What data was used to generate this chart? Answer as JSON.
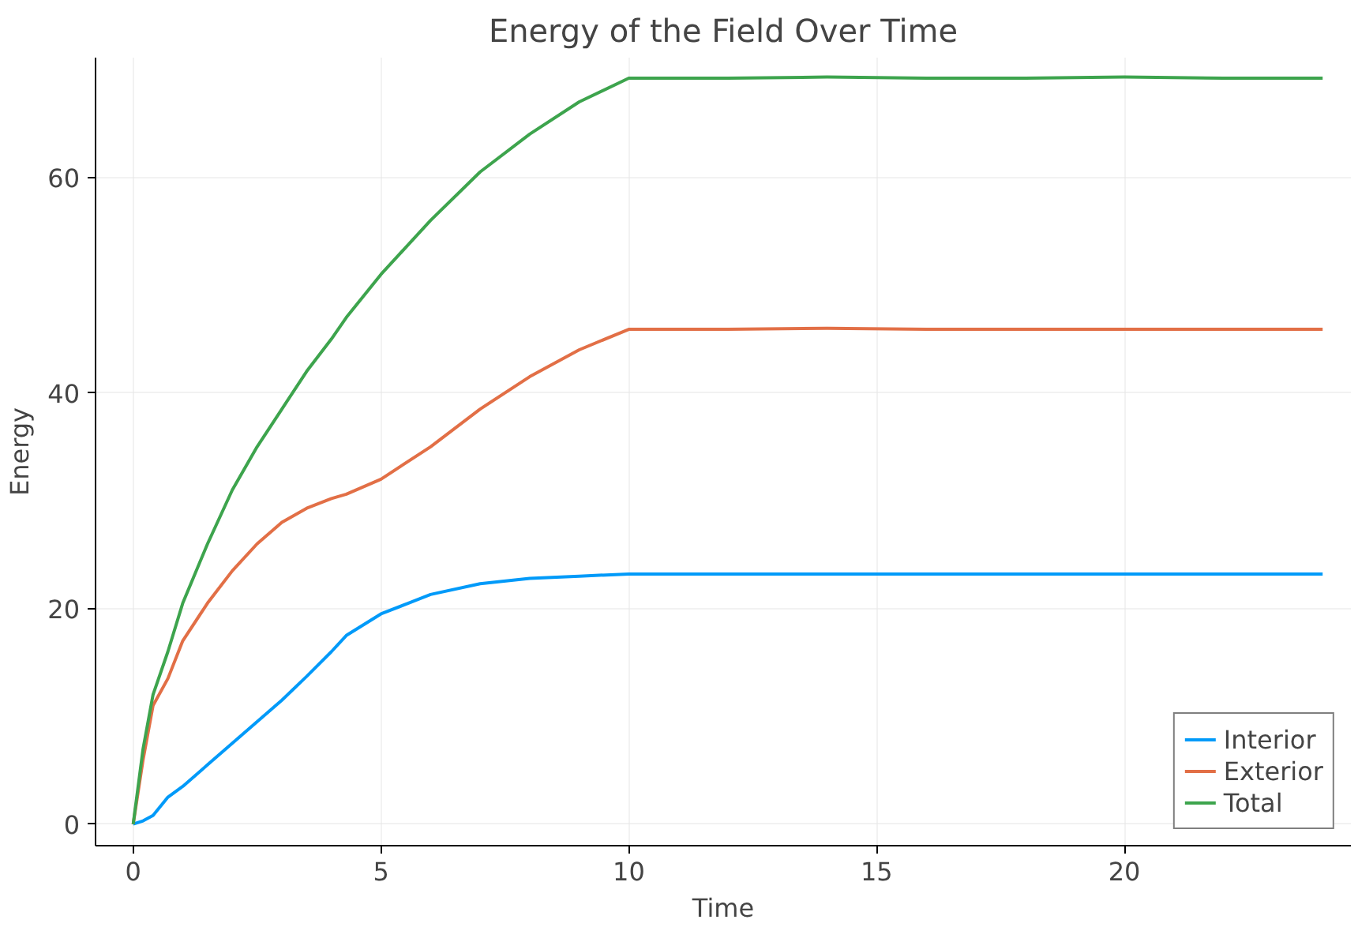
{
  "chart_data": {
    "type": "line",
    "title": "Energy of the Field Over Time",
    "xlabel": "Time",
    "ylabel": "Energy",
    "x": [
      0,
      0.2,
      0.4,
      0.7,
      1,
      1.5,
      2,
      2.5,
      3,
      3.5,
      4,
      4.3,
      5,
      6,
      7,
      8,
      9,
      10,
      12,
      14,
      16,
      18,
      20,
      22,
      24
    ],
    "series": [
      {
        "name": "Interior",
        "color": "#009af9",
        "values": [
          0,
          0.3,
          0.8,
          2.5,
          3.5,
          5.5,
          7.5,
          9.5,
          11.5,
          13.7,
          16,
          17.5,
          19.5,
          21.3,
          22.3,
          22.8,
          23,
          23.2,
          23.2,
          23.2,
          23.2,
          23.2,
          23.2,
          23.2,
          23.2
        ]
      },
      {
        "name": "Exterior",
        "color": "#e26f46",
        "values": [
          0,
          6,
          11,
          13.5,
          17,
          20.5,
          23.5,
          26,
          28,
          29.3,
          30.2,
          30.6,
          32,
          35,
          38.5,
          41.5,
          44,
          45.9,
          45.9,
          46,
          45.9,
          45.9,
          45.9,
          45.9,
          45.9
        ]
      },
      {
        "name": "Total",
        "color": "#3da44d",
        "values": [
          0,
          7,
          12,
          16,
          20.5,
          26,
          31,
          35,
          38.5,
          42,
          45,
          47,
          51,
          56,
          60.5,
          64,
          67,
          69.2,
          69.2,
          69.3,
          69.2,
          69.2,
          69.3,
          69.2,
          69.2
        ]
      }
    ],
    "xlim": [
      -0.76,
      24.57
    ],
    "ylim": [
      -2,
      71.1
    ],
    "xticks": [
      0,
      5,
      10,
      15,
      20
    ],
    "yticks": [
      0,
      20,
      40,
      60
    ],
    "grid": true,
    "legend": "bottom right",
    "line_style": "solid",
    "marker": "none"
  }
}
